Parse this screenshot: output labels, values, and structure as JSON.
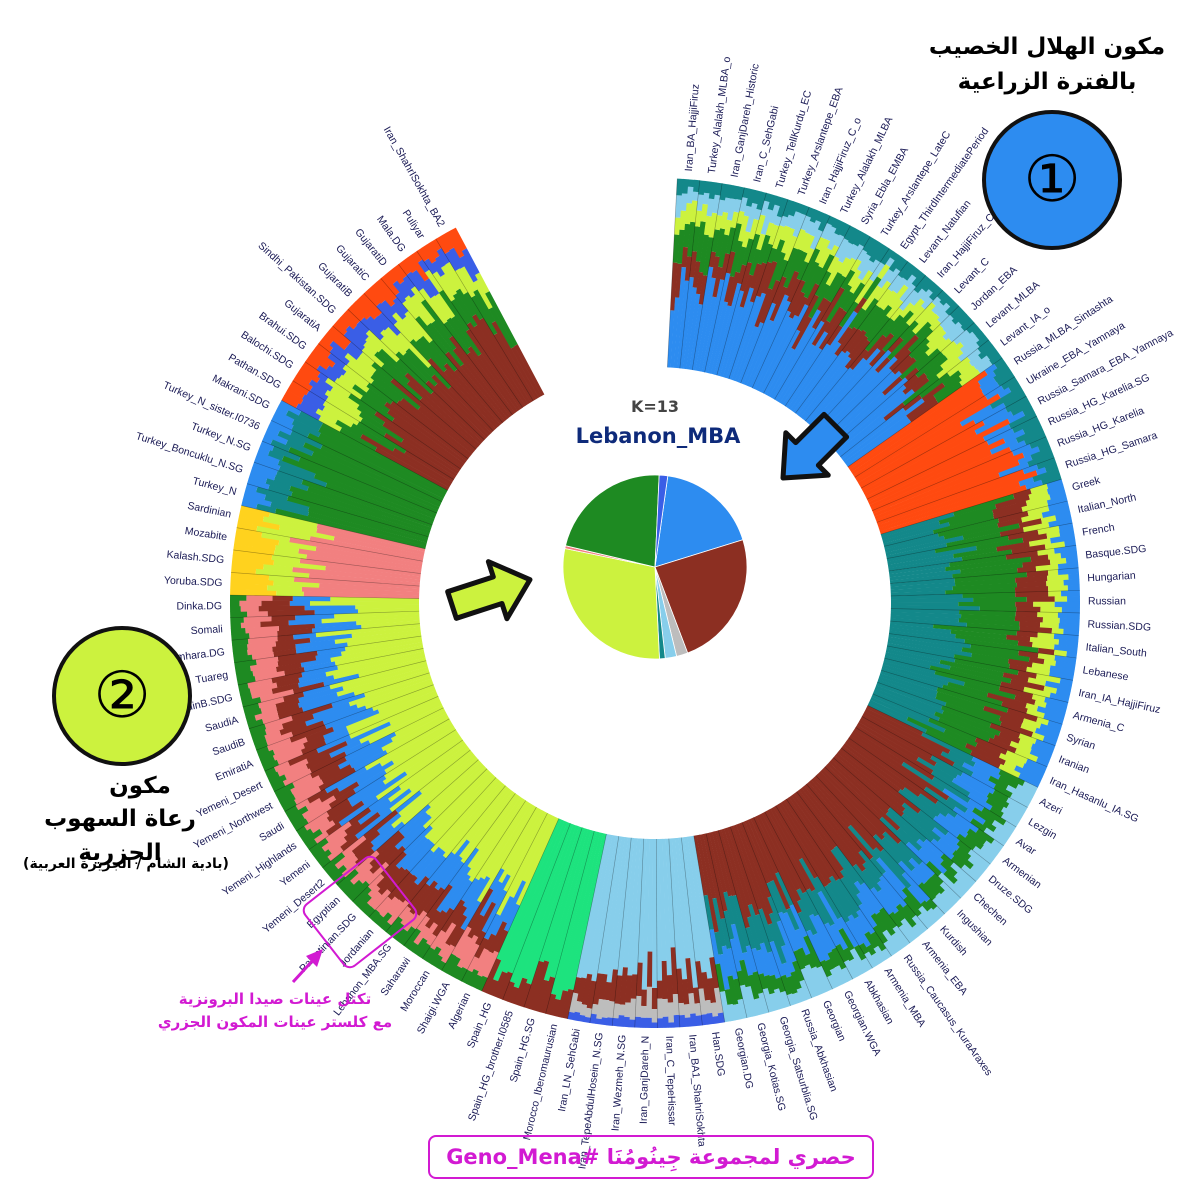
{
  "colors": {
    "levant_blue": "#2d8cf0",
    "arabian_lime": "#ccf23e",
    "anatolian_green": "#1e8a22",
    "iranian_brown": "#8c2f22",
    "steppe_orange": "#ff4a10",
    "teal": "#13888a",
    "light_blue": "#87ceeb",
    "salmon": "#f28080",
    "royal_blue": "#3a5ee6",
    "yellow": "#ffd21e",
    "grey": "#bdbdbd",
    "mint": "#1de37e",
    "purple": "#7a4cc8",
    "annotation_magenta": "#d21ad2"
  },
  "chart_data": {
    "type": "admixture-circular",
    "k_label": "K=13",
    "target_label": "Lebanon_MBA",
    "target_pie": [
      {
        "component": "levant_blue",
        "value": 0.18
      },
      {
        "component": "iranian_brown",
        "value": 0.24
      },
      {
        "component": "grey",
        "value": 0.02
      },
      {
        "component": "light_blue",
        "value": 0.02
      },
      {
        "component": "teal",
        "value": 0.01
      },
      {
        "component": "arabian_lime",
        "value": 0.29
      },
      {
        "component": "salmon",
        "value": 0.005
      },
      {
        "component": "anatolian_green",
        "value": 0.22
      },
      {
        "component": "royal_blue",
        "value": 0.015
      }
    ],
    "populations": [
      "Iran_BA_HajjiFiruz",
      "Turkey_Alalakh_MLBA_o",
      "Iran_GanjDareh_Historic",
      "Iran_C_SehGabi",
      "Turkey_TellKurdu_EC",
      "Turkey_Arslantepe_EBA",
      "Iran_HajjiFiruz_C_o",
      "Turkey_Alalakh_MLBA",
      "Syria_Ebla_EMBA",
      "Turkey_Arslantepe_LateC",
      "Egypt_ThirdIntermediatePeriod",
      "Levant_Natufian",
      "Iran_HajjiFiruz_C",
      "Levant_C",
      "Jordan_EBA",
      "Levant_MLBA",
      "Levant_IA_o",
      "Russia_MLBA_Sintashta",
      "Ukraine_EBA_Yamnaya",
      "Russia_Samara_EBA_Yamnaya",
      "Russia_HG_Karelia.SG",
      "Russia_HG_Karelia",
      "Russia_HG_Samara",
      "Greek",
      "Italian_North",
      "French",
      "Basque.SDG",
      "Hungarian",
      "Russian",
      "Russian.SDG",
      "Italian_South",
      "Lebanese",
      "Iran_IA_HajjiFiruz",
      "Armenia_C",
      "Syrian",
      "Iranian",
      "Iran_Hasanlu_IA.SG",
      "Azeri",
      "Lezgin",
      "Avar",
      "Armenian",
      "Druze.SDG",
      "Chechen",
      "Ingushian",
      "Kurdish",
      "Armenia_EBA",
      "Russia_Caucasus_KuraAraxes",
      "Armenia_MBA",
      "Abkhasian",
      "Georgian.WGA",
      "Georgian",
      "Russia_Abkhasian",
      "Georgia_Satsurblia.SG",
      "Georgia_Kotias.SG",
      "Georgian.DG",
      "Han.SDG",
      "Iran_BA1_ShahriSokhta",
      "Iran_C_TepeHissar",
      "Iran_GanjDareh_N",
      "Iran_Wezmeh_N.SG",
      "Iran_TepeAbdulHosein_N.SG",
      "Iran_LN_SehGabi",
      "Morocco_Iberomaurusian",
      "Spain_HG.SG",
      "Spain_HG_brother.I0585",
      "Spain_HG",
      "Algerian",
      "Shaigi.WGA",
      "Moroccan",
      "Saharawi",
      "Lebanon_MBA.SG",
      "Jordanian",
      "Palestinian.SDG",
      "Egyptian",
      "Yemeni_Desert2",
      "Yemeni",
      "Yemeni_Highlands",
      "Saudi",
      "Yemeni_Northwest",
      "Yemeni_Desert",
      "EmiratiA",
      "SaudiB",
      "SaudiA",
      "BedouinB.SDG",
      "Tuareg",
      "Amhara.DG",
      "Somali",
      "Dinka.DG",
      "Yoruba.SDG",
      "Kalash.SDG",
      "Mozabite",
      "Sardinian",
      "Turkey_N",
      "Turkey_Boncuklu_N.SG",
      "Turkey_N.SG",
      "Turkey_N_sister.I0736",
      "Makrani.SDG",
      "Pathan.SDG",
      "Balochi.SDG",
      "Brahui.SDG",
      "GujaratiA",
      "Sindhi_Pakistan.SDG",
      "GujaratiB",
      "GujaratiC",
      "GujaratiD",
      "Mala.DG",
      "Puliyar",
      "Iran_ShahrISokhta_BA2"
    ],
    "population_profiles": [
      {
        "range": [
          0,
          17
        ],
        "mix": {
          "levant_blue": 0.45,
          "iranian_brown": 0.15,
          "anatolian_green": 0.15,
          "arabian_lime": 0.1,
          "light_blue": 0.08,
          "teal": 0.07
        }
      },
      {
        "range": [
          17,
          23
        ],
        "mix": {
          "steppe_orange": 0.8,
          "levant_blue": 0.1,
          "teal": 0.1
        }
      },
      {
        "range": [
          23,
          37
        ],
        "mix": {
          "teal": 0.35,
          "anatolian_green": 0.3,
          "iranian_brown": 0.15,
          "arabian_lime": 0.1,
          "levant_blue": 0.1
        }
      },
      {
        "range": [
          37,
          55
        ],
        "mix": {
          "iranian_brown": 0.45,
          "teal": 0.2,
          "levant_blue": 0.15,
          "anatolian_green": 0.1,
          "light_blue": 0.1
        }
      },
      {
        "range": [
          55,
          62
        ],
        "mix": {
          "light_blue": 0.7,
          "iranian_brown": 0.15,
          "grey": 0.1,
          "royal_blue": 0.05
        }
      },
      {
        "range": [
          62,
          66
        ],
        "mix": {
          "mint": 0.85,
          "iranian_brown": 0.15
        }
      },
      {
        "range": [
          66,
          88
        ],
        "mix": {
          "arabian_lime": 0.45,
          "levant_blue": 0.2,
          "iranian_brown": 0.15,
          "salmon": 0.12,
          "anatolian_green": 0.08
        }
      },
      {
        "range": [
          88,
          92
        ],
        "mix": {
          "salmon": 0.55,
          "arabian_lime": 0.25,
          "yellow": 0.2
        }
      },
      {
        "range": [
          92,
          97
        ],
        "mix": {
          "anatolian_green": 0.75,
          "teal": 0.15,
          "levant_blue": 0.1
        }
      },
      {
        "range": [
          97,
          108
        ],
        "mix": {
          "iranian_brown": 0.45,
          "anatolian_green": 0.2,
          "arabian_lime": 0.15,
          "royal_blue": 0.1,
          "steppe_orange": 0.1
        }
      },
      {
        "range": [
          108,
          109
        ],
        "mix": {
          "royal_blue": 0.9,
          "grey": 0.1
        }
      }
    ]
  },
  "annotations": {
    "component1": {
      "line1": "مكون الهلال الخصيب",
      "line2": "بالفترة الزراعية",
      "number": "①"
    },
    "component2": {
      "number": "②",
      "line1": "مكون",
      "line2": "رعاة السهوب الجزرية",
      "line3": "(بادية الشام / الجزيرة العربية)"
    },
    "cluster_note": {
      "line1": "تكتل عينات صيدا البرونزية",
      "line2": "مع كلستر عينات المكون الجزري"
    },
    "footer": "حصري لمجموعة جِينُومُنَا  #Geno_Mena"
  }
}
